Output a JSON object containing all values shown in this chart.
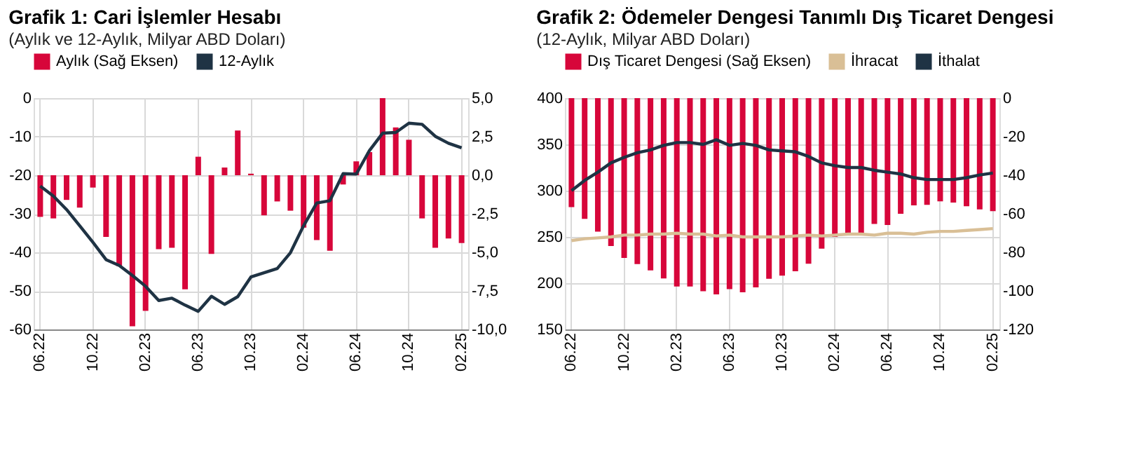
{
  "chart_data": [
    {
      "type": "bar",
      "title": "Grafik 1: Cari İşlemler Hesabı",
      "subtitle": "(Aylık ve 12-Aylık, Milyar ABD Doları)",
      "categories": [
        "06.22",
        null,
        null,
        null,
        "10.22",
        null,
        null,
        null,
        "02.23",
        null,
        null,
        null,
        "06.23",
        null,
        null,
        null,
        "10.23",
        null,
        null,
        null,
        "02.24",
        null,
        null,
        null,
        "06.24",
        null,
        null,
        null,
        "10.24",
        null,
        null,
        null,
        "02.25"
      ],
      "series": [
        {
          "name": "Aylık (Sağ Eksen)",
          "axis": "y2",
          "color": "#d7063a",
          "values": [
            -2.7,
            -2.8,
            -1.6,
            -2.1,
            -0.8,
            -4.0,
            -5.9,
            -9.8,
            -8.8,
            -4.8,
            -4.7,
            -7.4,
            1.2,
            -5.1,
            0.5,
            2.9,
            0.1,
            -2.6,
            -1.7,
            -2.3,
            -3.4,
            -4.2,
            -4.9,
            -0.6,
            0.9,
            1.5,
            5.0,
            3.1,
            2.3,
            -2.8,
            -4.7,
            -4.1,
            -4.4
          ]
        },
        {
          "name": "12-Aylık",
          "type": "line",
          "color": "#1f3344",
          "values": [
            -22.8,
            -25.4,
            -28.9,
            -33.1,
            -37.4,
            -41.9,
            -43.4,
            -46.0,
            -48.8,
            -52.5,
            -51.9,
            -53.7,
            -55.3,
            -51.4,
            -53.5,
            -51.5,
            -46.4,
            -45.3,
            -44.2,
            -40.1,
            -33.1,
            -27.2,
            -26.6,
            -19.6,
            -19.7,
            -13.6,
            -9.1,
            -8.9,
            -6.5,
            -6.8,
            -9.9,
            -11.7,
            -12.9
          ]
        }
      ],
      "ylim": [
        -60,
        0
      ],
      "yticks": [
        -60,
        -50,
        -40,
        -30,
        -20,
        -10,
        0
      ],
      "y2lim": [
        -10,
        5
      ],
      "y2ticks": [
        {
          "value": -10,
          "label": "-10,0"
        },
        {
          "value": -7.5,
          "label": "-7,5"
        },
        {
          "value": -5,
          "label": "-5,0"
        },
        {
          "value": -2.5,
          "label": "-2,5"
        },
        {
          "value": 0,
          "label": "0,0"
        },
        {
          "value": 2.5,
          "label": "2,5"
        },
        {
          "value": 5,
          "label": "5,0"
        }
      ],
      "grid": true,
      "legend": "top"
    },
    {
      "type": "bar",
      "title": "Grafik 2: Ödemeler Dengesi Tanımlı Dış Ticaret Dengesi",
      "subtitle": "(12-Aylık, Milyar ABD Doları)",
      "categories": [
        "06.22",
        null,
        null,
        null,
        "10.22",
        null,
        null,
        null,
        "02.23",
        null,
        null,
        null,
        "06.23",
        null,
        null,
        null,
        "10.23",
        null,
        null,
        null,
        "02.24",
        null,
        null,
        null,
        "06.24",
        null,
        null,
        null,
        "10.24",
        null,
        null,
        null,
        "02.25"
      ],
      "series": [
        {
          "name": "Dış Ticaret Dengesi (Sağ Eksen)",
          "axis": "y2",
          "color": "#d7063a",
          "values": [
            -56.5,
            -62.6,
            -69.3,
            -76.7,
            -82.9,
            -86.1,
            -89.4,
            -93.5,
            -97.7,
            -97.7,
            -100.2,
            -101.8,
            -99.1,
            -100.7,
            -98.2,
            -93.7,
            -92.1,
            -89.8,
            -85.9,
            -78.1,
            -72.0,
            -70.4,
            -69.9,
            -65.3,
            -65.8,
            -60.0,
            -55.6,
            -55.4,
            -53.5,
            -54.2,
            -56.1,
            -57.7,
            -58.6
          ]
        },
        {
          "name": "İhracat",
          "type": "line",
          "color": "#d9bf96",
          "values": [
            246,
            248,
            249,
            250,
            252,
            252,
            253,
            253,
            254,
            253,
            253,
            251,
            252,
            250,
            250,
            250,
            250,
            251,
            252,
            251,
            252,
            253,
            253,
            252,
            254,
            254,
            253,
            255,
            256,
            256,
            257,
            258,
            259
          ]
        },
        {
          "name": "İthalat",
          "type": "line",
          "color": "#1f3344",
          "values": [
            300,
            311,
            320,
            330,
            336,
            341,
            344,
            349,
            352,
            352,
            350,
            355,
            349,
            351,
            349,
            344,
            343,
            342,
            337,
            330,
            327,
            325,
            325,
            322,
            320,
            318,
            314,
            312,
            312,
            312,
            314,
            317,
            319
          ]
        }
      ],
      "ylim": [
        150,
        400
      ],
      "yticks": [
        150,
        200,
        250,
        300,
        350,
        400
      ],
      "y2lim": [
        -120,
        0
      ],
      "y2ticks": [
        -120,
        -100,
        -80,
        -60,
        -40,
        -20,
        0
      ],
      "grid": true,
      "legend": "top"
    }
  ]
}
